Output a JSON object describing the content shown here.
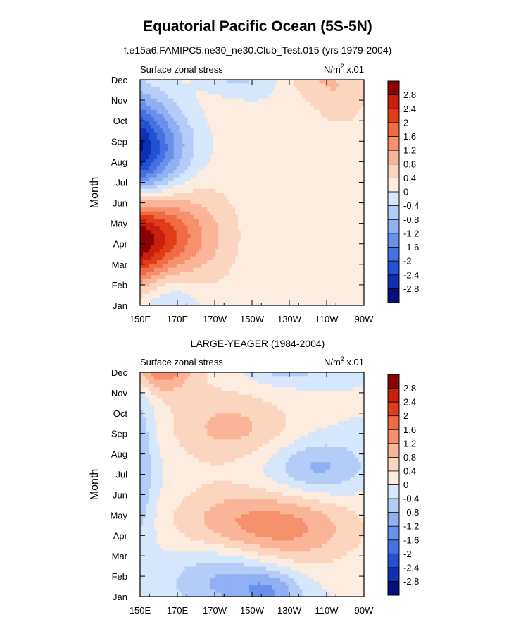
{
  "page": {
    "title": "Equatorial Pacific Ocean (5S-5N)"
  },
  "chart_data": [
    {
      "type": "heatmap",
      "title": "f.e15a6.FAMIPC5.ne30_ne30.Club_Test.015 (yrs 1979-2004)",
      "left_label": "Surface zonal stress",
      "units_prefix": "N/m",
      "units_sup": "2",
      "units_suffix": " x.01",
      "ylabel": "Month",
      "x_ticks": [
        "150E",
        "170E",
        "170W",
        "150W",
        "130W",
        "110W",
        "90W"
      ],
      "x_range": [
        150,
        270
      ],
      "y_ticks": [
        "Jan",
        "Feb",
        "Mar",
        "Apr",
        "May",
        "Jun",
        "Jul",
        "Aug",
        "Sep",
        "Oct",
        "Nov",
        "Dec"
      ],
      "features": [
        {
          "lon": 140,
          "month": 7.5,
          "amp": -3.6,
          "slon": 24,
          "smon": 1.9,
          "rot": -0.28
        },
        {
          "lon": 135,
          "month": 3.3,
          "amp": 3.8,
          "slon": 28,
          "smon": 1.7,
          "rot": -0.3
        },
        {
          "lon": 175,
          "month": 5.7,
          "amp": 0.55,
          "slon": 22,
          "smon": 6,
          "rot": -0.25
        },
        {
          "lon": 165,
          "month": 0.2,
          "amp": -1.0,
          "slon": 14,
          "smon": 1.5,
          "rot": 0
        },
        {
          "lon": 258,
          "month": 10.5,
          "amp": 0.7,
          "slon": 12,
          "smon": 1.5,
          "rot": 0
        },
        {
          "lon": 240,
          "month": 11.3,
          "amp": 0.5,
          "slon": 10,
          "smon": 1,
          "rot": 0
        },
        {
          "lon": 200,
          "month": 11.5,
          "amp": -0.8,
          "slon": 14,
          "smon": 0.8,
          "rot": 0
        }
      ]
    },
    {
      "type": "heatmap",
      "title": "LARGE-YEAGER (1984-2004)",
      "left_label": "Surface zonal stress",
      "units_prefix": "N/m",
      "units_sup": "2",
      "units_suffix": " x.01",
      "ylabel": "Month",
      "x_ticks": [
        "150E",
        "170E",
        "170W",
        "150W",
        "130W",
        "110W",
        "90W"
      ],
      "x_range": [
        150,
        270
      ],
      "y_ticks": [
        "Jan",
        "Feb",
        "Mar",
        "Apr",
        "May",
        "Jun",
        "Jul",
        "Aug",
        "Sep",
        "Oct",
        "Nov",
        "Dec"
      ],
      "features": [
        {
          "lon": 160,
          "month": 11.3,
          "amp": 1.6,
          "slon": 12,
          "smon": 0.9,
          "rot": 0
        },
        {
          "lon": 222,
          "month": 3.4,
          "amp": 1.5,
          "slon": 30,
          "smon": 1.4,
          "rot": -0.12
        },
        {
          "lon": 205,
          "month": 8.2,
          "amp": 0.75,
          "slon": 24,
          "smon": 1.2,
          "rot": 0
        },
        {
          "lon": 195,
          "month": 1.0,
          "amp": -1.2,
          "slon": 22,
          "smon": 1.3,
          "rot": -0.15
        },
        {
          "lon": 220,
          "month": 0.2,
          "amp": -0.9,
          "slon": 12,
          "smon": 0.8,
          "rot": 0
        },
        {
          "lon": 150,
          "month": 6.5,
          "amp": -0.7,
          "slon": 6,
          "smon": 4,
          "rot": 0
        },
        {
          "lon": 245,
          "month": 6.3,
          "amp": -0.9,
          "slon": 18,
          "smon": 1.0,
          "rot": 0
        },
        {
          "lon": 200,
          "month": 6.0,
          "amp": -0.25,
          "slon": 40,
          "smon": 1.3,
          "rot": 0
        },
        {
          "lon": 228,
          "month": 11.6,
          "amp": -0.9,
          "slon": 16,
          "smon": 0.7,
          "rot": 0
        },
        {
          "lon": 185,
          "month": 6.0,
          "amp": 0.35,
          "slon": 20,
          "smon": 5,
          "rot": 0
        }
      ]
    }
  ],
  "colorbar": {
    "labels": [
      "2.8",
      "2.4",
      "2",
      "1.6",
      "1.2",
      "0.8",
      "0.4",
      "0",
      "-0.4",
      "-0.8",
      "-1.2",
      "-1.6",
      "-2",
      "-2.4",
      "-2.8"
    ],
    "colors": [
      "#8b0000",
      "#c8200c",
      "#e23b18",
      "#f06a43",
      "#f6906d",
      "#fab497",
      "#fcd5bf",
      "#fdece0",
      "#d6e6fb",
      "#b4cdf8",
      "#8fb0f3",
      "#6891ec",
      "#4472e3",
      "#2351d4",
      "#0f2fb5",
      "#02107e"
    ]
  }
}
